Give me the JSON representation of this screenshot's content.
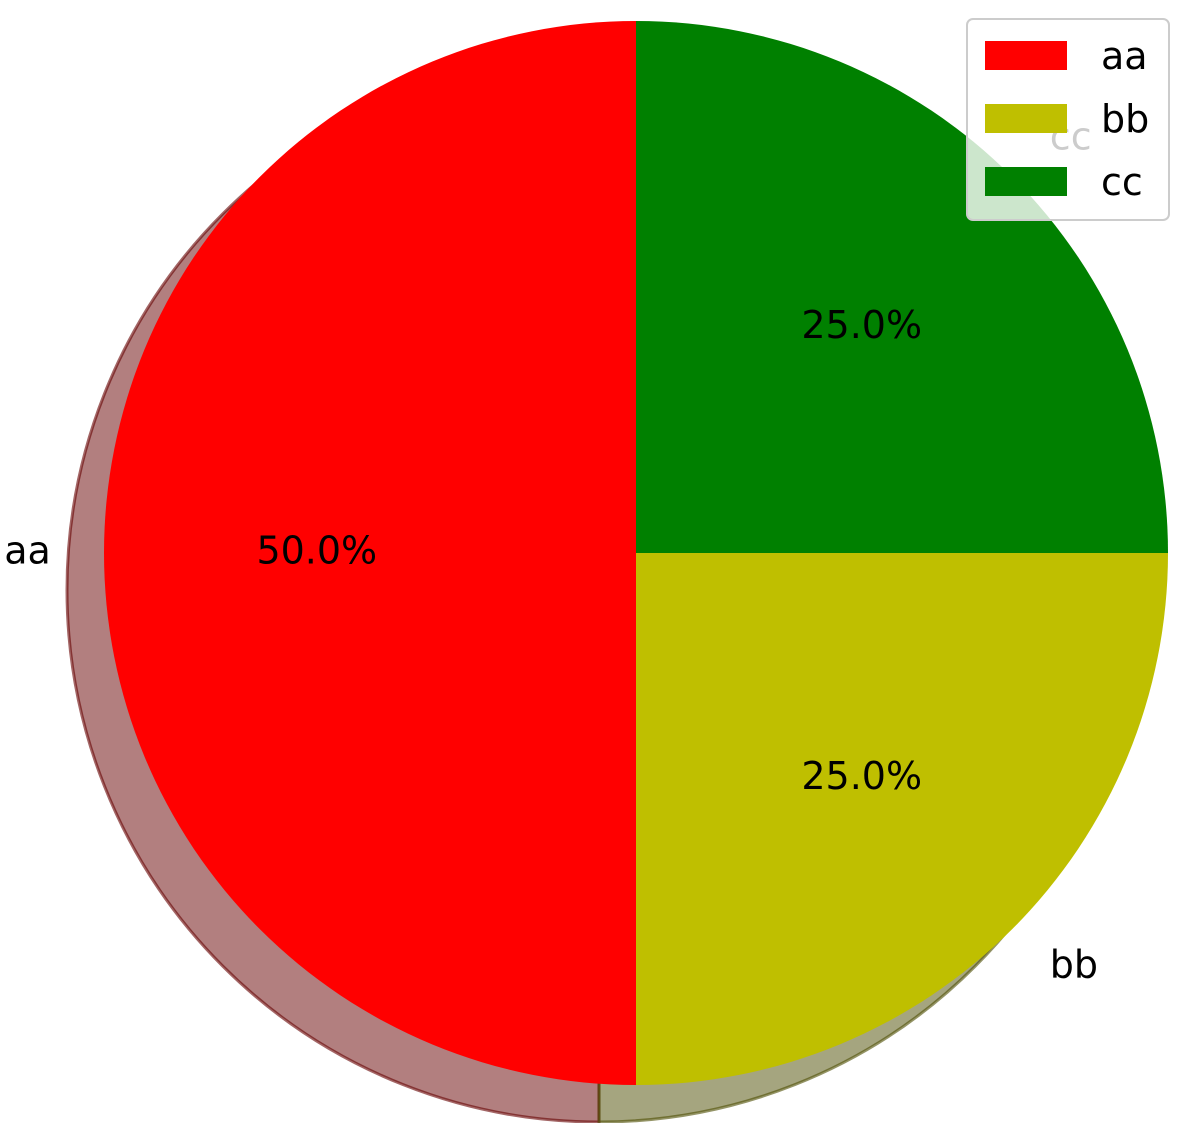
{
  "chart_data": {
    "type": "pie",
    "title": "",
    "slices": [
      {
        "label": "aa",
        "value": 50.0,
        "pct_label": "50.0%",
        "color": "#ff0000"
      },
      {
        "label": "bb",
        "value": 25.0,
        "pct_label": "25.0%",
        "color": "#bfbf00"
      },
      {
        "label": "cc",
        "value": 25.0,
        "pct_label": "25.0%",
        "color": "#008000"
      }
    ],
    "start_angle_deg": 90,
    "direction": "counterclockwise",
    "shadow": true,
    "legend": {
      "placement": "top-right",
      "entries": [
        "aa",
        "bb",
        "cc"
      ]
    }
  }
}
